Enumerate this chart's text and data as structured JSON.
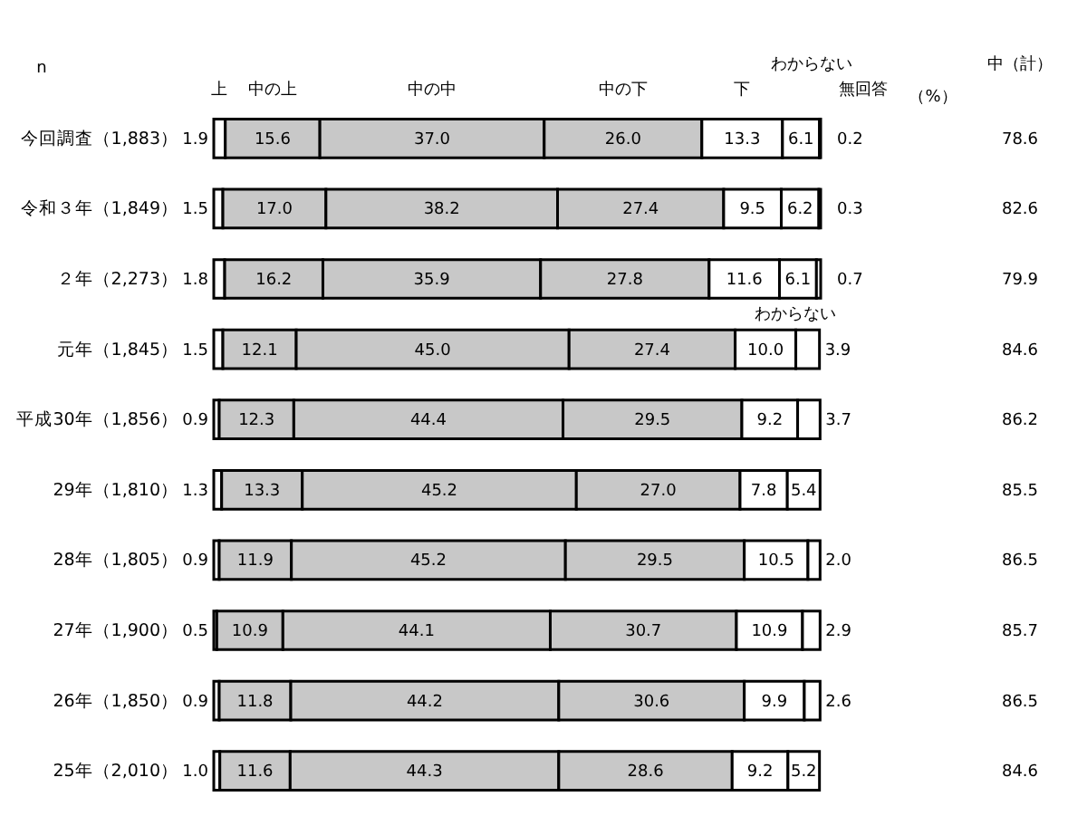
{
  "chart_data": {
    "type": "bar",
    "orientation": "horizontal",
    "stacked": true,
    "categories": [
      "今回調査（1,883）",
      "令和３年（1,849）",
      "２年（2,273）",
      "元年（1,845）",
      "平成30年（1,856）",
      "29年（1,810）",
      "28年（1,805）",
      "27年（1,900）",
      "26年（1,850）",
      "25年（2,010）"
    ],
    "series": [
      {
        "name": "上",
        "color": "#ffffff",
        "values": [
          1.9,
          1.5,
          1.8,
          1.5,
          0.9,
          1.3,
          0.9,
          0.5,
          0.9,
          1.0
        ],
        "value_labels": [
          "1.9",
          "1.5",
          "1.8",
          "1.5",
          "0.9",
          "1.3",
          "0.9",
          "0.5",
          "0.9",
          "1.0"
        ]
      },
      {
        "name": "中の上",
        "color": "#c8c8c8",
        "values": [
          15.6,
          17.0,
          16.2,
          12.1,
          12.3,
          13.3,
          11.9,
          10.9,
          11.8,
          11.6
        ],
        "value_labels": [
          "15.6",
          "17.0",
          "16.2",
          "12.1",
          "12.3",
          "13.3",
          "11.9",
          "10.9",
          "11.8",
          "11.6"
        ]
      },
      {
        "name": "中の中",
        "color": "#c8c8c8",
        "values": [
          37.0,
          38.2,
          35.9,
          45.0,
          44.4,
          45.2,
          45.2,
          44.1,
          44.2,
          44.3
        ],
        "value_labels": [
          "37.0",
          "38.2",
          "35.9",
          "45.0",
          "44.4",
          "45.2",
          "45.2",
          "44.1",
          "44.2",
          "44.3"
        ]
      },
      {
        "name": "中の下",
        "color": "#c8c8c8",
        "values": [
          26.0,
          27.4,
          27.8,
          27.4,
          29.5,
          27.0,
          29.5,
          30.7,
          30.6,
          28.6
        ],
        "value_labels": [
          "26.0",
          "27.4",
          "27.8",
          "27.4",
          "29.5",
          "27.0",
          "29.5",
          "30.7",
          "30.6",
          "28.6"
        ]
      },
      {
        "name": "下",
        "color": "#ffffff",
        "values": [
          13.3,
          9.5,
          11.6,
          10.0,
          9.2,
          7.8,
          10.5,
          10.9,
          9.9,
          9.2
        ],
        "value_labels": [
          "13.3",
          "9.5",
          "11.6",
          "10.0",
          "9.2",
          "7.8",
          "10.5",
          "10.9",
          "9.9",
          "9.2"
        ]
      },
      {
        "name": "わからない",
        "color": "#ffffff",
        "values": [
          6.1,
          6.2,
          6.1,
          3.9,
          3.7,
          5.4,
          2.0,
          2.9,
          2.6,
          5.2
        ],
        "value_labels": [
          "6.1",
          "6.2",
          "6.1",
          "3.9",
          "3.7",
          "5.4",
          "2.0",
          "2.9",
          "2.6",
          "5.2"
        ]
      },
      {
        "name": "無回答",
        "color": "#ffffff",
        "values": [
          0.2,
          0.3,
          0.7,
          null,
          null,
          null,
          null,
          null,
          null,
          null
        ],
        "value_labels": [
          "0.2",
          "0.3",
          "0.7",
          null,
          null,
          null,
          null,
          null,
          null,
          null
        ]
      }
    ],
    "annotations": [
      "n",
      "（%）",
      "中（計）",
      "わからない",
      "78.6",
      "82.6",
      "79.9",
      "84.6",
      "86.2",
      "85.5",
      "86.5",
      "85.7",
      "86.5",
      "84.6"
    ]
  }
}
